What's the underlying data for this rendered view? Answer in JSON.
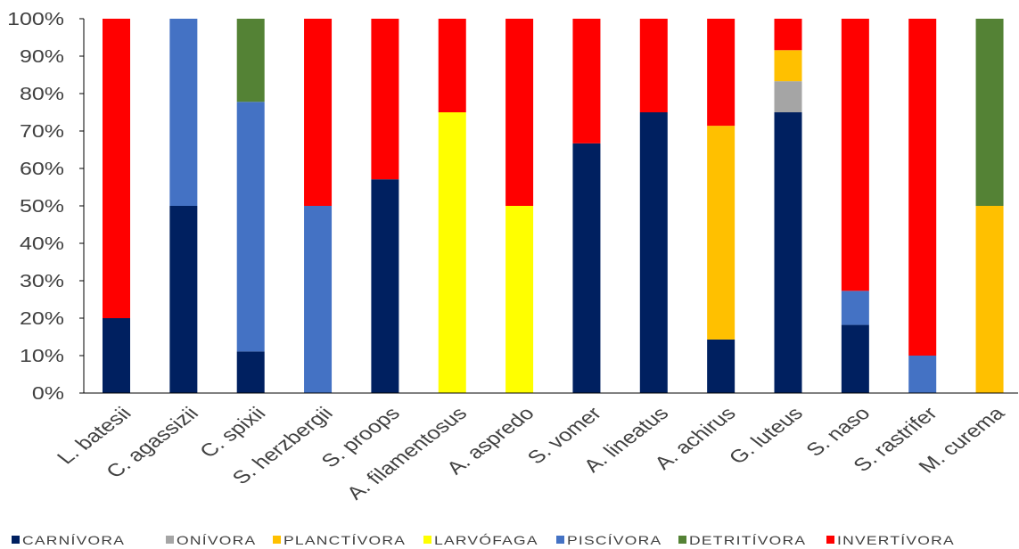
{
  "chart_data": {
    "type": "bar",
    "stacked": "percent",
    "categories": [
      "L. batesii",
      "C. agassizii",
      "C. spixii",
      "S. herzbergii",
      "S. proops",
      "A. filamentosus",
      "A. aspredo",
      "S. vomer",
      "A. lineatus",
      "A. achirus",
      "G. luteus",
      "S. naso",
      "S. rastrifer",
      "M. curema"
    ],
    "series": [
      {
        "name": "CARNÍVORA",
        "color": "#002060",
        "values": [
          20,
          50,
          11.1,
          0,
          57.1,
          0,
          0,
          66.7,
          75,
          14.3,
          75,
          18.2,
          0,
          0
        ]
      },
      {
        "name": "ONÍVORA",
        "color": "#a5a5a5",
        "values": [
          0,
          0,
          0,
          0,
          0,
          0,
          0,
          0,
          0,
          0,
          8.3,
          0,
          0,
          0
        ]
      },
      {
        "name": "PLANCTÍVORA",
        "color": "#ffc000",
        "values": [
          0,
          0,
          0,
          0,
          0,
          0,
          0,
          0,
          0,
          57.1,
          8.3,
          0,
          0,
          50
        ]
      },
      {
        "name": "LARVÓFAGA",
        "color": "#ffff00",
        "values": [
          0,
          0,
          0,
          0,
          0,
          75,
          50,
          0,
          0,
          0,
          0,
          0,
          0,
          0
        ]
      },
      {
        "name": "PISCÍVORA",
        "color": "#4472c4",
        "values": [
          0,
          50,
          66.7,
          50,
          0,
          0,
          0,
          0,
          0,
          0,
          0,
          9.1,
          10,
          0
        ]
      },
      {
        "name": "DETRITÍVORA",
        "color": "#548235",
        "values": [
          0,
          0,
          22.2,
          0,
          0,
          0,
          0,
          0,
          0,
          0,
          0,
          0,
          0,
          50
        ]
      },
      {
        "name": "INVERTÍVORA",
        "color": "#ff0000",
        "values": [
          80,
          0,
          0,
          50,
          42.9,
          25,
          50,
          33.3,
          25,
          28.6,
          8.4,
          72.7,
          90,
          0
        ]
      }
    ],
    "ylim": [
      0,
      100
    ],
    "yticks": [
      {
        "value": 0,
        "label": "0%"
      },
      {
        "value": 10,
        "label": "10%"
      },
      {
        "value": 20,
        "label": "20%"
      },
      {
        "value": 30,
        "label": "30%"
      },
      {
        "value": 40,
        "label": "40%"
      },
      {
        "value": 50,
        "label": "50%"
      },
      {
        "value": 60,
        "label": "60%"
      },
      {
        "value": 70,
        "label": "70%"
      },
      {
        "value": 80,
        "label": "80%"
      },
      {
        "value": 90,
        "label": "90%"
      },
      {
        "value": 100,
        "label": "100%"
      }
    ],
    "grid": false,
    "legend": "bottom"
  }
}
